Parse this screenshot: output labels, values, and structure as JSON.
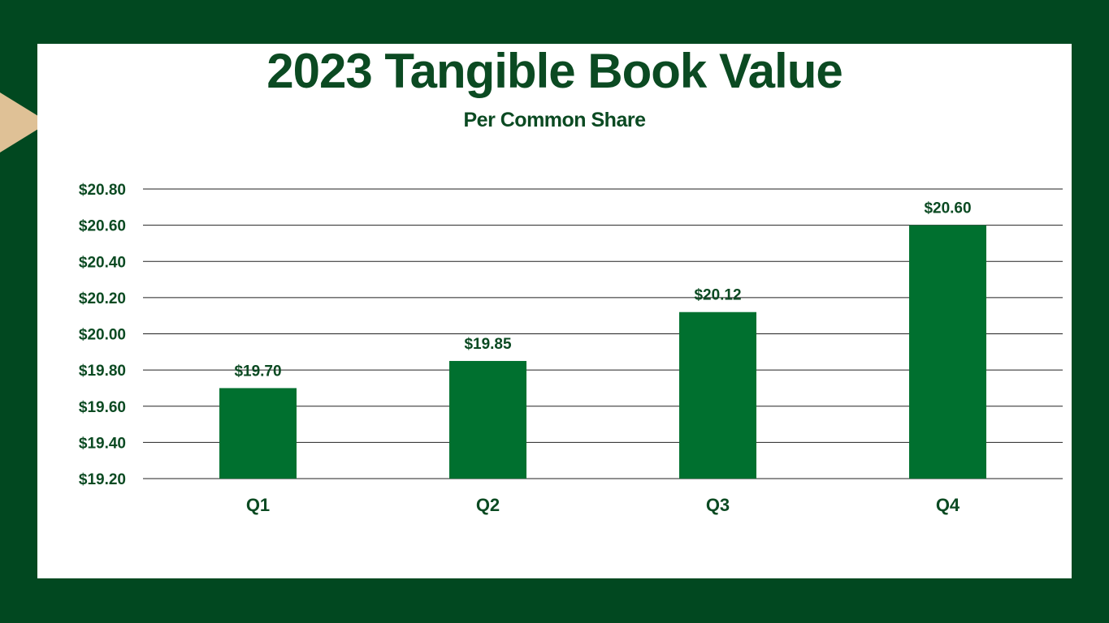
{
  "slide": {
    "title": "2023 Tangible Book Value",
    "subtitle": "Per Common Share",
    "colors": {
      "background": "#014820",
      "panel": "#FFFFFF",
      "accent": "#DFC196",
      "text": "#0B4A22",
      "bar": "#00702F",
      "grid": "#222222"
    }
  },
  "chart_data": {
    "type": "bar",
    "title": "2023 Tangible Book Value",
    "subtitle": "Per Common Share",
    "categories": [
      "Q1",
      "Q2",
      "Q3",
      "Q4"
    ],
    "values": [
      19.7,
      19.85,
      20.12,
      20.6
    ],
    "value_labels": [
      "$19.70",
      "$19.85",
      "$20.12",
      "$20.60"
    ],
    "ylim": [
      19.2,
      20.8
    ],
    "y_ticks": [
      19.2,
      19.4,
      19.6,
      19.8,
      20.0,
      20.2,
      20.4,
      20.6,
      20.8
    ],
    "y_tick_labels": [
      "$19.20",
      "$19.40",
      "$19.60",
      "$19.80",
      "$20.00",
      "$20.20",
      "$20.40",
      "$20.60",
      "$20.80"
    ],
    "grid": true,
    "legend": "none"
  }
}
